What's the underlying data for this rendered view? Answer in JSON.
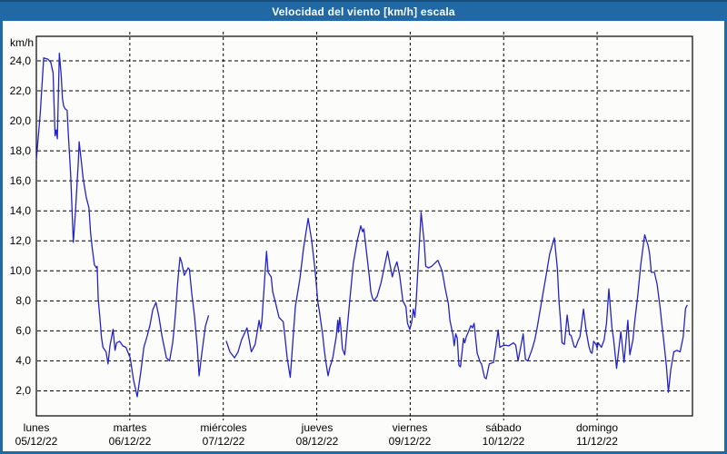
{
  "title": "Velocidad del viento [km/h] escala",
  "colors": {
    "frame": "#2069a5",
    "frame_top_edge": "#164f7e",
    "content_bg": "#fcfdfb",
    "grid": "#000000",
    "axis": "#000000",
    "text": "#000000",
    "title_text": "#ffffff",
    "line": "#2323c8"
  },
  "chart_data": {
    "type": "line",
    "title": "Velocidad del viento [km/h] escala",
    "ylabel": "km/h",
    "unit": "km/h",
    "grid": true,
    "ylim": [
      0,
      25.6
    ],
    "y_ticks": [
      24,
      22,
      20,
      18,
      16,
      14,
      12,
      10,
      8,
      6,
      4,
      2
    ],
    "y_tick_labels": [
      "24,0",
      "22,0",
      "20,0",
      "18,0",
      "16,0",
      "14,0",
      "12,0",
      "10,0",
      "8,0",
      "6,0",
      "4,0",
      "2,0"
    ],
    "x_days": [
      {
        "name": "lunes",
        "date": "05/12/22"
      },
      {
        "name": "martes",
        "date": "06/12/22"
      },
      {
        "name": "miércoles",
        "date": "07/12/22"
      },
      {
        "name": "jueves",
        "date": "08/12/22"
      },
      {
        "name": "viernes",
        "date": "09/12/22"
      },
      {
        "name": "sábado",
        "date": "10/12/22"
      },
      {
        "name": "domingo",
        "date": "11/12/22"
      }
    ],
    "x_unit": "hours",
    "hours_per_day": 24,
    "x_range_hours": [
      0,
      168.4
    ],
    "series": [
      {
        "name": "Velocidad del viento",
        "color": "#2323c8",
        "segments": [
          [
            [
              0,
              17.4
            ],
            [
              1,
              20.5
            ],
            [
              1.9,
              24.2
            ],
            [
              3,
              24.1
            ],
            [
              3.7,
              23.9
            ],
            [
              4.3,
              23.2
            ],
            [
              4.8,
              19.0
            ],
            [
              5.1,
              19.4
            ],
            [
              5.4,
              18.8
            ],
            [
              5.9,
              24.5
            ],
            [
              6.4,
              23.0
            ],
            [
              6.7,
              21.5
            ],
            [
              7,
              21.0
            ],
            [
              7.4,
              20.8
            ],
            [
              7.9,
              20.7
            ],
            [
              8.2,
              19.2
            ],
            [
              8.8,
              16.5
            ],
            [
              9.5,
              11.9
            ],
            [
              10,
              13.8
            ],
            [
              10.4,
              15.6
            ],
            [
              10.8,
              17.4
            ],
            [
              11,
              18.6
            ],
            [
              11.6,
              17.2
            ],
            [
              12,
              16.2
            ],
            [
              12.8,
              14.9
            ],
            [
              13.5,
              14.2
            ],
            [
              13.9,
              12.6
            ],
            [
              14.3,
              11.6
            ],
            [
              14.9,
              10.4
            ],
            [
              15.4,
              10.2
            ],
            [
              15.6,
              10.3
            ],
            [
              15.9,
              8.1
            ],
            [
              16.3,
              6.9
            ],
            [
              16.7,
              5.6
            ],
            [
              17.1,
              4.9
            ],
            [
              17.9,
              4.6
            ],
            [
              18.4,
              3.8
            ],
            [
              18.9,
              5.0
            ],
            [
              19.7,
              6.1
            ],
            [
              20.2,
              4.7
            ],
            [
              20.6,
              5.2
            ],
            [
              21.4,
              5.3
            ],
            [
              22.2,
              5.0
            ],
            [
              23,
              4.9
            ],
            [
              24.1,
              4.2
            ],
            [
              24.9,
              2.8
            ],
            [
              25.9,
              1.6
            ],
            [
              26.8,
              3.2
            ],
            [
              27.6,
              4.9
            ],
            [
              28.4,
              5.6
            ],
            [
              29.2,
              6.4
            ],
            [
              29.9,
              7.4
            ],
            [
              30.7,
              7.9
            ],
            [
              31.5,
              6.9
            ],
            [
              32.3,
              5.6
            ],
            [
              33.1,
              4.6
            ],
            [
              33.4,
              4.2
            ],
            [
              34.2,
              4.0
            ],
            [
              35,
              5.2
            ],
            [
              35.4,
              6.2
            ],
            [
              35.8,
              7.4
            ],
            [
              36.2,
              8.9
            ],
            [
              36.6,
              10.1
            ],
            [
              36.9,
              10.9
            ],
            [
              37.3,
              10.6
            ],
            [
              38,
              9.7
            ],
            [
              39,
              10.2
            ],
            [
              39.3,
              10.1
            ],
            [
              39.9,
              8.5
            ],
            [
              40.6,
              7.0
            ],
            [
              41.3,
              5.0
            ],
            [
              41.8,
              3.0
            ],
            [
              42.5,
              4.5
            ],
            [
              43.4,
              6.3
            ],
            [
              44.2,
              7.0
            ]
          ],
          [
            [
              48.8,
              5.3
            ],
            [
              49.7,
              4.6
            ],
            [
              50.9,
              4.2
            ],
            [
              51.8,
              4.6
            ],
            [
              52.7,
              5.4
            ],
            [
              54.1,
              6.2
            ],
            [
              55.2,
              4.6
            ],
            [
              56.2,
              5.1
            ],
            [
              57.2,
              6.7
            ],
            [
              57.6,
              6.1
            ],
            [
              57.9,
              6.6
            ],
            [
              59.1,
              11.3
            ],
            [
              59.5,
              9.9
            ],
            [
              60.3,
              9.6
            ],
            [
              60.7,
              8.6
            ],
            [
              61.4,
              7.9
            ],
            [
              62.3,
              6.9
            ],
            [
              63.4,
              6.6
            ],
            [
              63.8,
              5.7
            ],
            [
              64.4,
              4.2
            ],
            [
              65.2,
              2.9
            ],
            [
              66.5,
              7.6
            ],
            [
              67.7,
              9.5
            ],
            [
              68.6,
              11.5
            ],
            [
              69.8,
              13.5
            ],
            [
              70.7,
              12.0
            ],
            [
              71.6,
              10.0
            ],
            [
              72.3,
              7.9
            ],
            [
              72.7,
              7.3
            ],
            [
              73.1,
              6.5
            ],
            [
              73.5,
              5.8
            ],
            [
              73.9,
              4.8
            ],
            [
              74.3,
              4.0
            ],
            [
              74.9,
              3.0
            ],
            [
              75.4,
              3.6
            ],
            [
              75.8,
              3.9
            ],
            [
              76.2,
              4.3
            ],
            [
              76.6,
              5.0
            ],
            [
              77,
              5.6
            ],
            [
              77.4,
              6.7
            ],
            [
              77.6,
              5.9
            ],
            [
              77.9,
              6.9
            ],
            [
              78.2,
              6.2
            ],
            [
              78.6,
              4.8
            ],
            [
              79.2,
              4.4
            ],
            [
              80.5,
              8.1
            ],
            [
              81.4,
              10.5
            ],
            [
              82.4,
              12.0
            ],
            [
              83.3,
              13.0
            ],
            [
              83.8,
              12.6
            ],
            [
              84.1,
              12.8
            ],
            [
              84.8,
              11.2
            ],
            [
              85.6,
              9.4
            ],
            [
              85.9,
              8.6
            ],
            [
              86.3,
              8.2
            ],
            [
              86.7,
              8.0
            ],
            [
              87.5,
              8.3
            ],
            [
              88.5,
              9.2
            ],
            [
              89.4,
              10.3
            ],
            [
              90.2,
              11.3
            ],
            [
              90.6,
              10.7
            ],
            [
              91.4,
              9.6
            ],
            [
              92,
              10.2
            ],
            [
              92.6,
              10.6
            ],
            [
              93.3,
              9.7
            ],
            [
              94.1,
              8.0
            ],
            [
              94.9,
              7.6
            ],
            [
              95.3,
              6.5
            ],
            [
              95.9,
              6.1
            ],
            [
              96.4,
              6.6
            ],
            [
              96.8,
              7.45
            ],
            [
              97.2,
              6.9
            ],
            [
              97.5,
              7.8
            ],
            [
              98.8,
              13.9
            ],
            [
              99.6,
              11.9
            ],
            [
              100,
              10.3
            ],
            [
              100.7,
              10.2
            ],
            [
              101.5,
              10.3
            ],
            [
              103.1,
              10.7
            ],
            [
              104.2,
              10.0
            ],
            [
              105,
              8.8
            ],
            [
              105.8,
              7.8
            ],
            [
              106.2,
              6.7
            ],
            [
              107,
              5.7
            ],
            [
              107.3,
              5.0
            ],
            [
              107.7,
              5.8
            ],
            [
              108.1,
              5.5
            ],
            [
              108.5,
              3.7
            ],
            [
              108.9,
              3.6
            ],
            [
              109.7,
              5.5
            ],
            [
              110,
              5.2
            ],
            [
              110.4,
              5.6
            ],
            [
              111.6,
              6.35
            ],
            [
              112,
              6.2
            ],
            [
              112.4,
              6.5
            ],
            [
              113.2,
              4.5
            ],
            [
              114,
              3.9
            ],
            [
              114.3,
              3.8
            ],
            [
              115.1,
              2.9
            ],
            [
              115.5,
              2.8
            ],
            [
              116.3,
              3.8
            ],
            [
              117.4,
              3.9
            ],
            [
              118.6,
              6.05
            ],
            [
              119,
              4.9
            ],
            [
              119.7,
              5.0
            ],
            [
              120.4,
              5.05
            ],
            [
              121.3,
              5.0
            ],
            [
              122.5,
              5.2
            ],
            [
              123.1,
              5.05
            ],
            [
              123.7,
              4.0
            ],
            [
              125,
              5.8
            ],
            [
              125.6,
              4.1
            ],
            [
              126.2,
              4.0
            ],
            [
              127.2,
              4.7
            ],
            [
              128,
              5.4
            ],
            [
              128.7,
              6.35
            ],
            [
              129.5,
              7.6
            ],
            [
              130.3,
              8.8
            ],
            [
              131.1,
              10.0
            ],
            [
              131.8,
              11.1
            ],
            [
              133,
              12.2
            ],
            [
              133.8,
              10.1
            ],
            [
              134.2,
              8.0
            ],
            [
              134.6,
              6.7
            ],
            [
              135,
              5.2
            ],
            [
              135.6,
              5.1
            ],
            [
              136.3,
              7.05
            ],
            [
              136.9,
              5.75
            ],
            [
              137.3,
              5.7
            ],
            [
              138.1,
              4.95
            ],
            [
              138.5,
              4.9
            ],
            [
              139.2,
              5.4
            ],
            [
              139.6,
              5.6
            ],
            [
              140.5,
              7.45
            ],
            [
              141.2,
              5.95
            ],
            [
              141.9,
              4.95
            ],
            [
              142.3,
              4.6
            ],
            [
              142.7,
              4.5
            ],
            [
              143.1,
              5.3
            ],
            [
              143.7,
              5.1
            ],
            [
              144,
              4.85
            ],
            [
              144.3,
              5.2
            ],
            [
              145.1,
              4.9
            ],
            [
              145.8,
              5.4
            ],
            [
              146.4,
              6.5
            ],
            [
              147,
              8.8
            ],
            [
              147.8,
              6.2
            ],
            [
              148.2,
              5.5
            ],
            [
              149,
              3.5
            ],
            [
              150.1,
              5.95
            ],
            [
              150.9,
              3.9
            ],
            [
              151.9,
              6.7
            ],
            [
              152.4,
              4.4
            ],
            [
              153.2,
              5.4
            ],
            [
              153.6,
              6.5
            ],
            [
              154.4,
              8.3
            ],
            [
              155.2,
              10.4
            ],
            [
              156.2,
              12.4
            ],
            [
              156.7,
              12.0
            ],
            [
              157.1,
              11.7
            ],
            [
              157.5,
              11.1
            ],
            [
              157.9,
              9.9
            ],
            [
              158.7,
              9.9
            ],
            [
              159.4,
              9.1
            ],
            [
              159.8,
              8.3
            ],
            [
              160.2,
              7.5
            ],
            [
              160.6,
              6.5
            ],
            [
              161,
              5.6
            ],
            [
              161.4,
              4.6
            ],
            [
              161.8,
              3.6
            ],
            [
              162.3,
              1.9
            ],
            [
              162.9,
              3.4
            ],
            [
              163.7,
              4.6
            ],
            [
              164.5,
              4.7
            ],
            [
              165.3,
              4.6
            ],
            [
              166.1,
              5.6
            ],
            [
              166.7,
              7.5
            ],
            [
              167.1,
              7.7
            ]
          ]
        ]
      }
    ]
  }
}
